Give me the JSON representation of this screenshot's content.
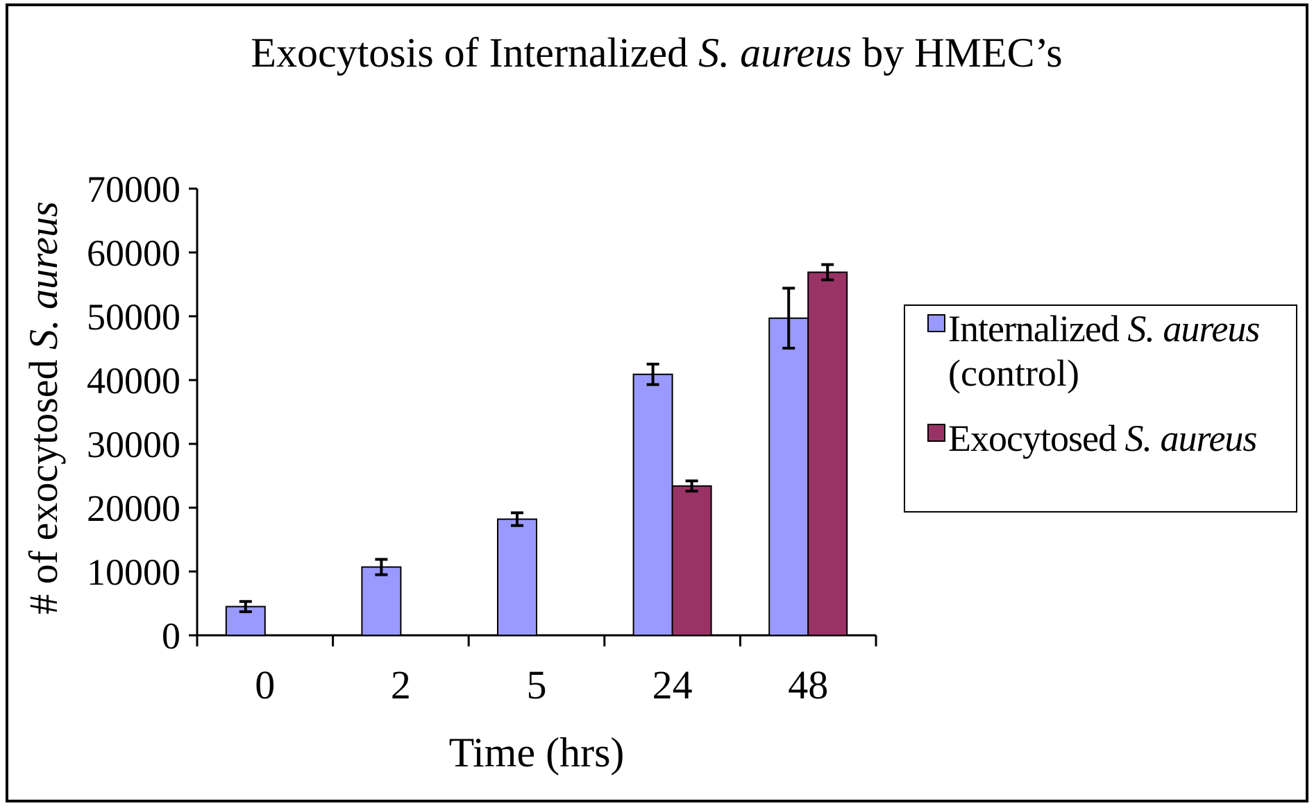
{
  "chart_data": {
    "type": "bar",
    "title": {
      "parts": [
        {
          "text": "Exocytosis of Internalized ",
          "italic": false
        },
        {
          "text": "S. aureus",
          "italic": true
        },
        {
          "text": " by HMEC’s",
          "italic": false
        }
      ]
    },
    "xlabel": "Time (hrs)",
    "ylabel": {
      "parts": [
        {
          "text": "# of exocytosed ",
          "italic": false
        },
        {
          "text": "S. aureus",
          "italic": true
        }
      ]
    },
    "categories": [
      "0",
      "2",
      "5",
      "24",
      "48"
    ],
    "ylim": [
      0,
      70000
    ],
    "yticks": [
      0,
      10000,
      20000,
      30000,
      40000,
      50000,
      60000,
      70000
    ],
    "ytick_labels": [
      "0",
      "10000",
      "20000",
      "30000",
      "40000",
      "50000",
      "60000",
      "70000"
    ],
    "grid": false,
    "legend_position": "right",
    "series": [
      {
        "legend_parts": [
          {
            "text": "Internalized ",
            "italic": false
          },
          {
            "text": "S. aureus",
            "italic": true
          }
        ],
        "legend_line2": "(control)",
        "color": "#9999ff",
        "values": [
          4500,
          10700,
          18200,
          40900,
          49700
        ],
        "errors": [
          800,
          1200,
          1000,
          1600,
          4700
        ]
      },
      {
        "legend_parts": [
          {
            "text": "Exocytosed ",
            "italic": false
          },
          {
            "text": "S. aureus",
            "italic": true
          }
        ],
        "legend_line2": "",
        "color": "#993366",
        "values": [
          null,
          null,
          null,
          23400,
          56900
        ],
        "errors": [
          null,
          null,
          null,
          800,
          1200
        ]
      }
    ]
  }
}
